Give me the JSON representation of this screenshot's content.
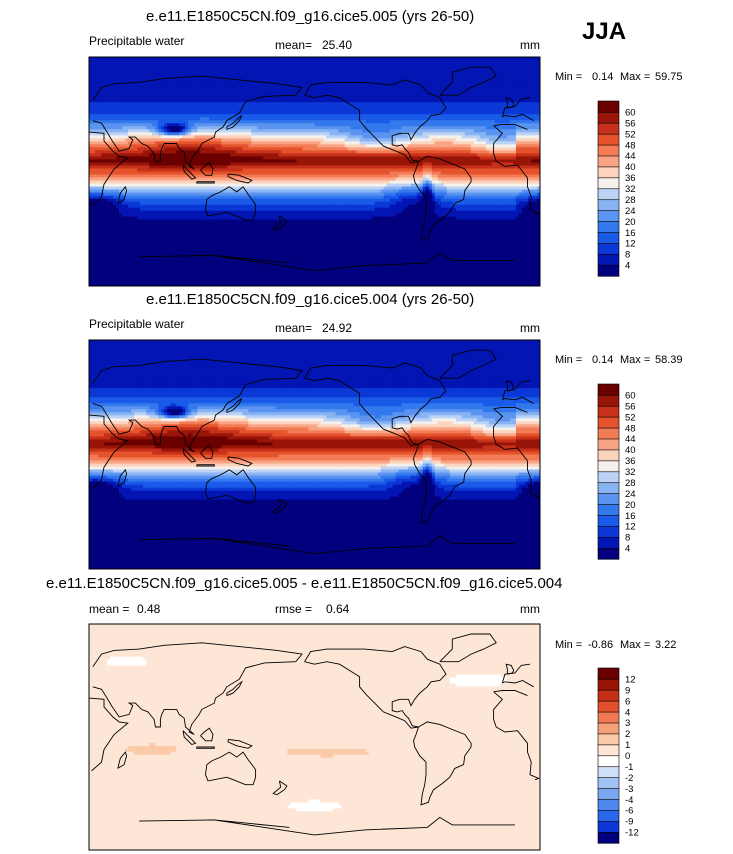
{
  "season": "JJA",
  "chart_data": [
    {
      "type": "heatmap",
      "title": "e.e11.E1850C5CN.f09_g16.cice5.005 (yrs 26-50)",
      "variable": "Precipitable water",
      "mean_label": "mean=",
      "mean_value": "25.40",
      "units": "mm",
      "min_label": "Min =",
      "min_value": "0.14",
      "max_label": "Max =",
      "max_value": "59.75",
      "colorbar_levels": [
        "4",
        "8",
        "12",
        "16",
        "20",
        "24",
        "28",
        "32",
        "36",
        "40",
        "44",
        "48",
        "52",
        "56",
        "60"
      ],
      "colorbar_colors": [
        "#03007d",
        "#0315b3",
        "#0b38d6",
        "#1a5ae8",
        "#3478ed",
        "#5a94f0",
        "#89b4f3",
        "#bcd3f6",
        "#f4f1ec",
        "#fcd3bd",
        "#f9a585",
        "#f37b55",
        "#e4532b",
        "#c7301a",
        "#981508",
        "#6a0000"
      ],
      "map_style": "moist"
    },
    {
      "type": "heatmap",
      "title": "e.e11.E1850C5CN.f09_g16.cice5.004 (yrs 26-50)",
      "variable": "Precipitable water",
      "mean_label": "mean=",
      "mean_value": "24.92",
      "units": "mm",
      "min_label": "Min =",
      "min_value": "0.14",
      "max_label": "Max =",
      "max_value": "58.39",
      "colorbar_levels": [
        "4",
        "8",
        "12",
        "16",
        "20",
        "24",
        "28",
        "32",
        "36",
        "40",
        "44",
        "48",
        "52",
        "56",
        "60"
      ],
      "colorbar_colors": [
        "#03007d",
        "#0315b3",
        "#0b38d6",
        "#1a5ae8",
        "#3478ed",
        "#5a94f0",
        "#89b4f3",
        "#bcd3f6",
        "#f4f1ec",
        "#fcd3bd",
        "#f9a585",
        "#f37b55",
        "#e4532b",
        "#c7301a",
        "#981508",
        "#6a0000"
      ],
      "map_style": "moist"
    },
    {
      "type": "heatmap",
      "title": "e.e11.E1850C5CN.f09_g16.cice5.005 - e.e11.E1850C5CN.f09_g16.cice5.004",
      "mean_label": "mean =",
      "mean_value": "0.48",
      "rmse_label": "rmse =",
      "rmse_value": "0.64",
      "units": "mm",
      "min_label": "Min =",
      "min_value": "-0.86",
      "max_label": "Max =",
      "max_value": "3.22",
      "colorbar_levels": [
        "-12",
        "-9",
        "-6",
        "-4",
        "-3",
        "-2",
        "-1",
        "0",
        "1",
        "2",
        "3",
        "4",
        "6",
        "9",
        "12"
      ],
      "colorbar_colors": [
        "#03007d",
        "#0b38d6",
        "#2a66ea",
        "#4f88ef",
        "#7aa6f2",
        "#a3c2f4",
        "#cfe0f8",
        "#ffffff",
        "#fde6d6",
        "#fbcaa8",
        "#f7a07c",
        "#f07a52",
        "#e0512b",
        "#c42e17",
        "#971305",
        "#6a0000"
      ],
      "map_style": "diff"
    }
  ]
}
